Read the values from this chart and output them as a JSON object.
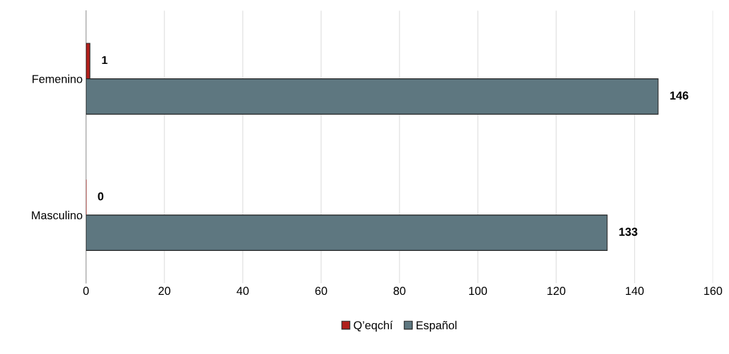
{
  "chart_data": {
    "type": "bar",
    "orientation": "horizontal",
    "categories": [
      "Femenino",
      "Masculino"
    ],
    "series": [
      {
        "name": "Q’eqchí",
        "color": "#b0201c",
        "values": [
          1,
          0
        ]
      },
      {
        "name": "Español",
        "color": "#5e7780",
        "values": [
          146,
          133
        ]
      }
    ],
    "xlim": [
      0,
      160
    ],
    "xticks": [
      0,
      20,
      40,
      60,
      80,
      100,
      120,
      140,
      160
    ],
    "grid": "x",
    "legend": "bottom",
    "data_labels": true
  }
}
